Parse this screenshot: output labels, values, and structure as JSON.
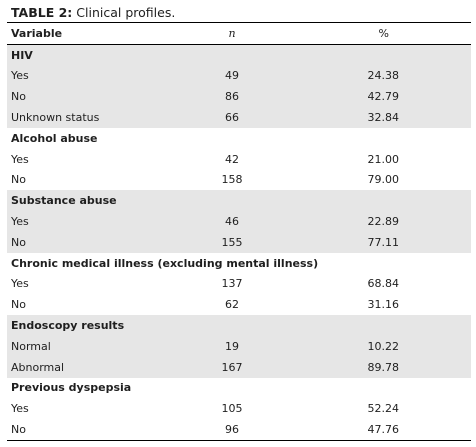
{
  "caption": {
    "lead": "TABLE 2:",
    "text": "Clinical profiles."
  },
  "headers": {
    "variable": "Variable",
    "n": "n",
    "pct": "%"
  },
  "groups": [
    {
      "title": "HIV",
      "rows": [
        {
          "label": "Yes",
          "n": "49",
          "pct": "24.38"
        },
        {
          "label": "No",
          "n": "86",
          "pct": "42.79"
        },
        {
          "label": "Unknown status",
          "n": "66",
          "pct": "32.84"
        }
      ]
    },
    {
      "title": "Alcohol abuse",
      "rows": [
        {
          "label": "Yes",
          "n": "42",
          "pct": "21.00"
        },
        {
          "label": "No",
          "n": "158",
          "pct": "79.00"
        }
      ]
    },
    {
      "title": "Substance abuse",
      "rows": [
        {
          "label": "Yes",
          "n": "46",
          "pct": "22.89"
        },
        {
          "label": "No",
          "n": "155",
          "pct": "77.11"
        }
      ]
    },
    {
      "title": "Chronic medical illness (excluding mental illness)",
      "rows": [
        {
          "label": "Yes",
          "n": "137",
          "pct": "68.84"
        },
        {
          "label": "No",
          "n": "62",
          "pct": "31.16"
        }
      ]
    },
    {
      "title": "Endoscopy results",
      "rows": [
        {
          "label": "Normal",
          "n": "19",
          "pct": "10.22"
        },
        {
          "label": "Abnormal",
          "n": "167",
          "pct": "89.78"
        }
      ]
    },
    {
      "title": "Previous dyspepsia",
      "rows": [
        {
          "label": "Yes",
          "n": "105",
          "pct": "52.24"
        },
        {
          "label": "No",
          "n": "96",
          "pct": "47.76"
        }
      ]
    }
  ],
  "colors": {
    "shade": "#e6e6e6",
    "rule": "#000000"
  }
}
